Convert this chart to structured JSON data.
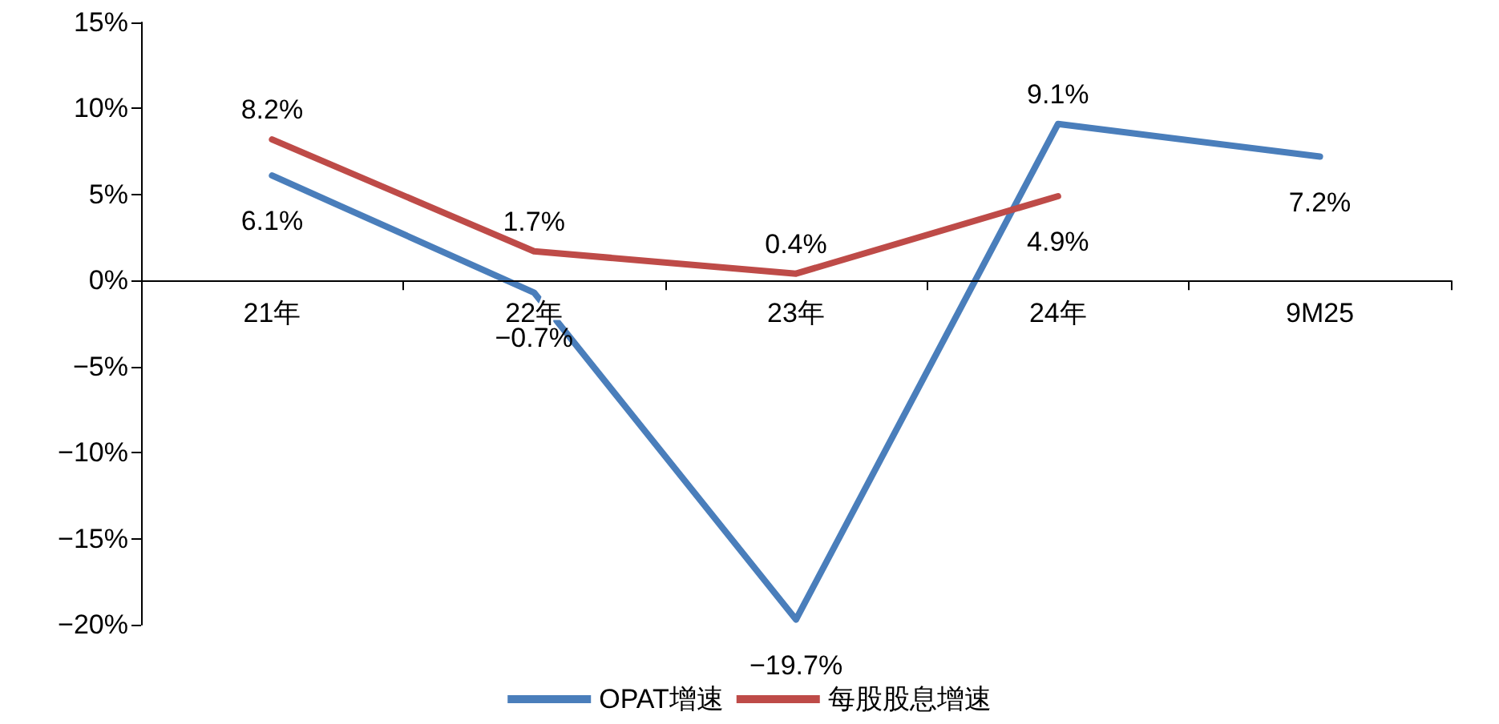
{
  "chart_data": {
    "type": "line",
    "categories": [
      "21年",
      "22年",
      "23年",
      "24年",
      "9M25"
    ],
    "series": [
      {
        "name": "OPAT增速",
        "color": "#4a7ebb",
        "values": [
          6.1,
          -0.7,
          -19.7,
          9.1,
          7.2
        ],
        "value_labels": [
          "6.1%",
          "−0.7%",
          "−19.7%",
          "9.1%",
          "7.2%"
        ]
      },
      {
        "name": "每股股息增速",
        "color": "#be4b48",
        "values": [
          8.2,
          1.7,
          0.4,
          4.9,
          null
        ],
        "value_labels": [
          "8.2%",
          "1.7%",
          "0.4%",
          "4.9%",
          null
        ]
      }
    ],
    "ylim": [
      -20,
      15
    ],
    "yticks": [
      {
        "value": -20,
        "label": "−20%"
      },
      {
        "value": -15,
        "label": "−15%"
      },
      {
        "value": -10,
        "label": "−10%"
      },
      {
        "value": -5,
        "label": "−5%"
      },
      {
        "value": 0,
        "label": "0%"
      },
      {
        "value": 5,
        "label": "5%"
      },
      {
        "value": 10,
        "label": "10%"
      },
      {
        "value": 15,
        "label": "15%"
      }
    ],
    "grid": false,
    "legend": "bottom",
    "marker": "none",
    "line_style": "solid"
  }
}
